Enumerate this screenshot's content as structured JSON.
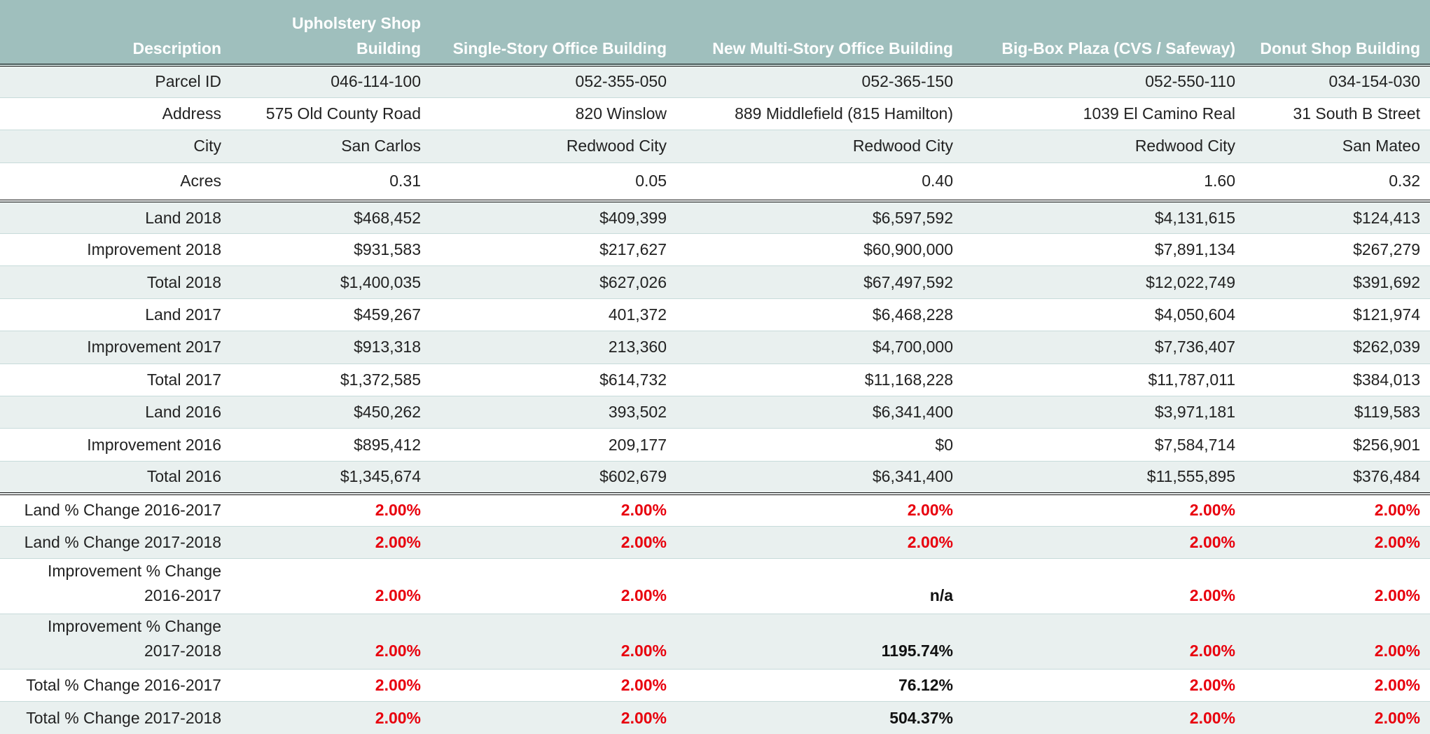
{
  "columns": [
    "Description",
    "Upholstery Shop Building",
    "Single-Story Office Building",
    "New Multi-Story Office Building",
    "Big-Box Plaza (CVS / Safeway)",
    "Donut Shop Building"
  ],
  "colors": {
    "header_bg": "#9fbfbd",
    "shade_bg": "#e9f0ef",
    "pct_red": "#e8000d"
  },
  "rows": [
    {
      "label": "Parcel ID",
      "values": [
        "046-114-100",
        "052-355-050",
        "052-365-150",
        "052-550-110",
        "034-154-030"
      ]
    },
    {
      "label": "Address",
      "values": [
        "575 Old County Road",
        "820 Winslow",
        "889 Middlefield (815 Hamilton)",
        "1039 El Camino Real",
        "31 South B Street"
      ]
    },
    {
      "label": "City",
      "values": [
        "San Carlos",
        "Redwood City",
        "Redwood City",
        "Redwood City",
        "San Mateo"
      ]
    },
    {
      "label": "Acres",
      "values": [
        "0.31",
        "0.05",
        "0.40",
        "1.60",
        "0.32"
      ]
    },
    {
      "label": "Land 2018",
      "values": [
        "$468,452",
        "$409,399",
        "$6,597,592",
        "$4,131,615",
        "$124,413"
      ]
    },
    {
      "label": "Improvement 2018",
      "values": [
        "$931,583",
        "$217,627",
        "$60,900,000",
        "$7,891,134",
        "$267,279"
      ]
    },
    {
      "label": "Total 2018",
      "values": [
        "$1,400,035",
        "$627,026",
        "$67,497,592",
        "$12,022,749",
        "$391,692"
      ]
    },
    {
      "label": "Land 2017",
      "values": [
        "$459,267",
        "401,372",
        "$6,468,228",
        "$4,050,604",
        "$121,974"
      ]
    },
    {
      "label": "Improvement 2017",
      "values": [
        "$913,318",
        "213,360",
        "$4,700,000",
        "$7,736,407",
        "$262,039"
      ]
    },
    {
      "label": "Total 2017",
      "values": [
        "$1,372,585",
        "$614,732",
        "$11,168,228",
        "$11,787,011",
        "$384,013"
      ]
    },
    {
      "label": "Land 2016",
      "values": [
        "$450,262",
        "393,502",
        "$6,341,400",
        "$3,971,181",
        "$119,583"
      ]
    },
    {
      "label": "Improvement 2016",
      "values": [
        "$895,412",
        "209,177",
        "$0",
        "$7,584,714",
        "$256,901"
      ]
    },
    {
      "label": "Total 2016",
      "values": [
        "$1,345,674",
        "$602,679",
        "$6,341,400",
        "$11,555,895",
        "$376,484"
      ]
    },
    {
      "label": "Land % Change 2016-2017",
      "values": [
        "2.00%",
        "2.00%",
        "2.00%",
        "2.00%",
        "2.00%"
      ]
    },
    {
      "label": "Land % Change 2017-2018",
      "values": [
        "2.00%",
        "2.00%",
        "2.00%",
        "2.00%",
        "2.00%"
      ]
    },
    {
      "label": "Improvement % Change 2016-2017",
      "values": [
        "2.00%",
        "2.00%",
        "n/a",
        "2.00%",
        "2.00%"
      ]
    },
    {
      "label": "Improvement % Change 2017-2018",
      "values": [
        "2.00%",
        "2.00%",
        "1195.74%",
        "2.00%",
        "2.00%"
      ]
    },
    {
      "label": "Total % Change 2016-2017",
      "values": [
        "2.00%",
        "2.00%",
        "76.12%",
        "2.00%",
        "2.00%"
      ]
    },
    {
      "label": "Total % Change 2017-2018",
      "values": [
        "2.00%",
        "2.00%",
        "504.37%",
        "2.00%",
        "2.00%"
      ]
    }
  ]
}
